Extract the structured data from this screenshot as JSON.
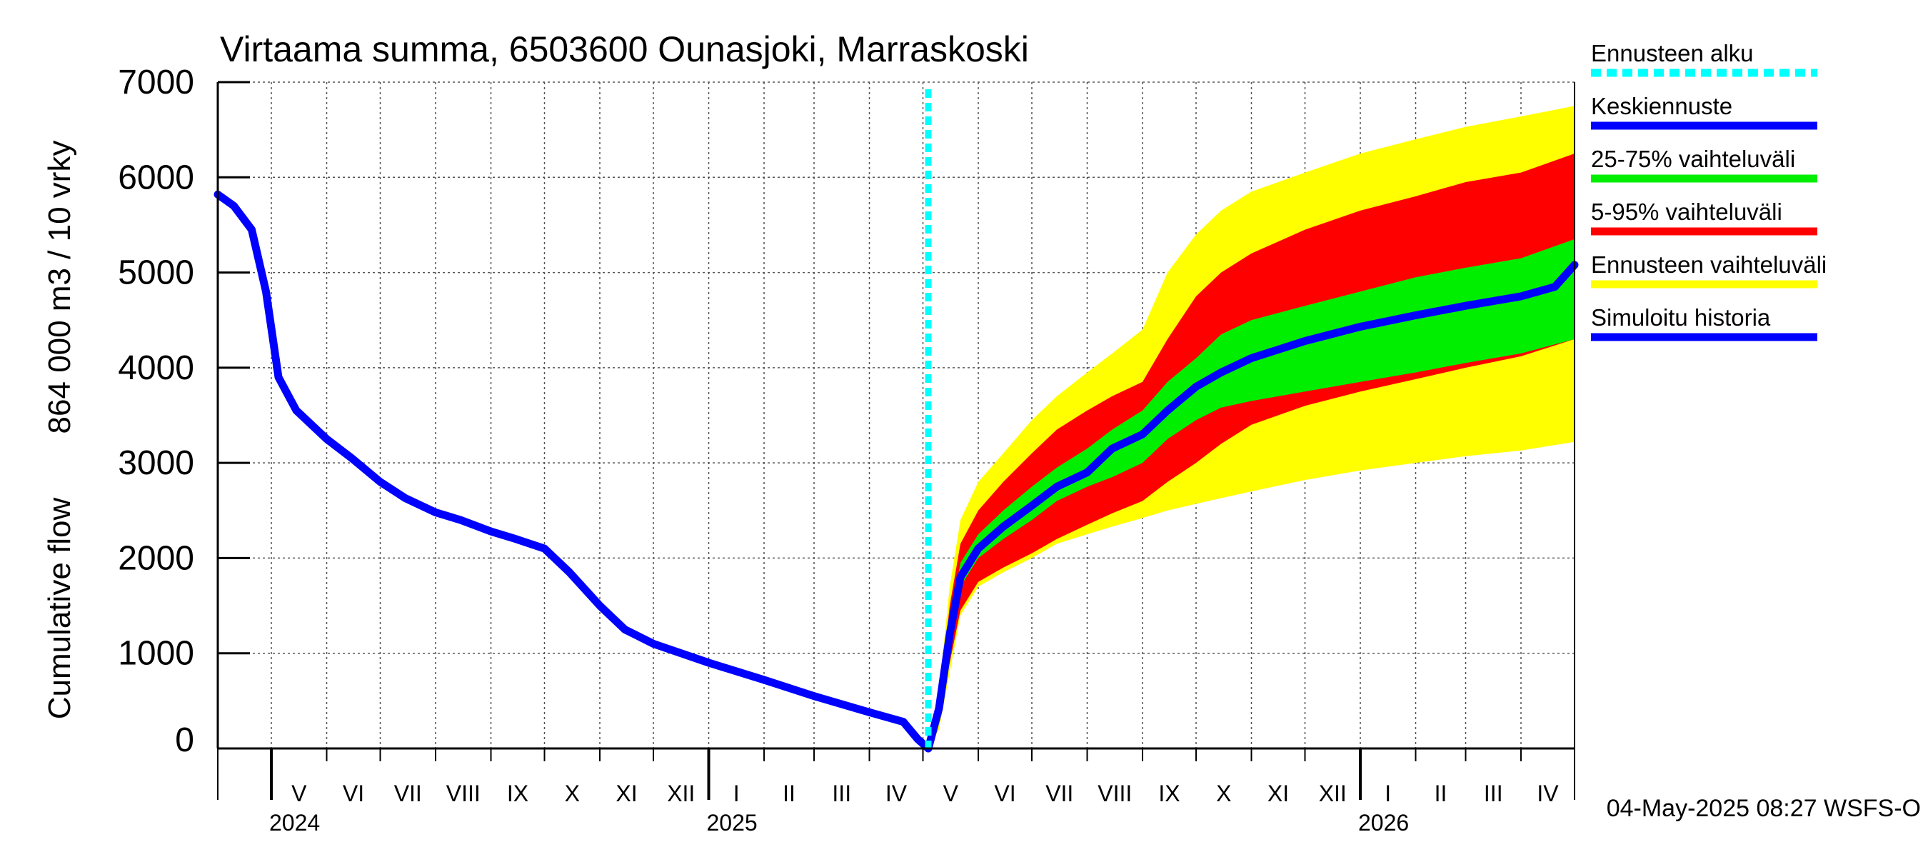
{
  "chart_data": {
    "type": "area",
    "title": "Virtaama summa, 6503600 Ounasjoki, Marraskoski",
    "ylabel_primary": "Cumulative flow",
    "ylabel_secondary": "864 000 m3 / 10 vrky",
    "ylim": [
      0,
      7000
    ],
    "y_ticks": [
      "0",
      "1000",
      "2000",
      "3000",
      "4000",
      "5000",
      "6000",
      "7000"
    ],
    "y_tick_values": [
      0,
      1000,
      2000,
      3000,
      4000,
      5000,
      6000,
      7000
    ],
    "xlim": [
      "2024-04-01",
      "2026-05-01"
    ],
    "grid": true,
    "legend_placement": "right",
    "months": [
      {
        "label": "V",
        "start": "2024-05-01",
        "end": "2024-06-01"
      },
      {
        "label": "VI",
        "start": "2024-06-01",
        "end": "2024-07-01"
      },
      {
        "label": "VII",
        "start": "2024-07-01",
        "end": "2024-08-01"
      },
      {
        "label": "VIII",
        "start": "2024-08-01",
        "end": "2024-09-01"
      },
      {
        "label": "IX",
        "start": "2024-09-01",
        "end": "2024-10-01"
      },
      {
        "label": "X",
        "start": "2024-10-01",
        "end": "2024-11-01"
      },
      {
        "label": "XI",
        "start": "2024-11-01",
        "end": "2024-12-01"
      },
      {
        "label": "XII",
        "start": "2024-12-01",
        "end": "2025-01-01"
      },
      {
        "label": "I",
        "start": "2025-01-01",
        "end": "2025-02-01"
      },
      {
        "label": "II",
        "start": "2025-02-01",
        "end": "2025-03-01"
      },
      {
        "label": "III",
        "start": "2025-03-01",
        "end": "2025-04-01"
      },
      {
        "label": "IV",
        "start": "2025-04-01",
        "end": "2025-05-01"
      },
      {
        "label": "V",
        "start": "2025-05-01",
        "end": "2025-06-01"
      },
      {
        "label": "VI",
        "start": "2025-06-01",
        "end": "2025-07-01"
      },
      {
        "label": "VII",
        "start": "2025-07-01",
        "end": "2025-08-01"
      },
      {
        "label": "VIII",
        "start": "2025-08-01",
        "end": "2025-09-01"
      },
      {
        "label": "IX",
        "start": "2025-09-01",
        "end": "2025-10-01"
      },
      {
        "label": "X",
        "start": "2025-10-01",
        "end": "2025-11-01"
      },
      {
        "label": "XI",
        "start": "2025-11-01",
        "end": "2025-12-01"
      },
      {
        "label": "XII",
        "start": "2025-12-01",
        "end": "2026-01-01"
      },
      {
        "label": "I",
        "start": "2026-01-01",
        "end": "2026-02-01"
      },
      {
        "label": "II",
        "start": "2026-02-01",
        "end": "2026-03-01"
      },
      {
        "label": "III",
        "start": "2026-03-01",
        "end": "2026-04-01"
      },
      {
        "label": "IV",
        "start": "2026-04-01",
        "end": "2026-05-01"
      }
    ],
    "years": [
      {
        "label": "2024",
        "start": "2024-05-01"
      },
      {
        "label": "2025",
        "start": "2025-01-01"
      },
      {
        "label": "2026",
        "start": "2026-01-01"
      }
    ],
    "forecast_start": "2025-05-04",
    "series": [
      {
        "name": "Ennusteen vaihteluväli",
        "color": "#ffff00",
        "kind": "band",
        "x": [
          "2025-05-04",
          "2025-05-10",
          "2025-05-16",
          "2025-05-22",
          "2025-06-01",
          "2025-06-15",
          "2025-07-01",
          "2025-07-15",
          "2025-08-01",
          "2025-08-15",
          "2025-09-01",
          "2025-09-15",
          "2025-10-01",
          "2025-10-15",
          "2025-11-01",
          "2025-12-01",
          "2026-01-01",
          "2026-02-01",
          "2026-03-01",
          "2026-04-01",
          "2026-05-01"
        ],
        "low": [
          0,
          200,
          800,
          1400,
          1700,
          1850,
          2000,
          2150,
          2250,
          2330,
          2420,
          2500,
          2570,
          2630,
          2700,
          2820,
          2920,
          3000,
          3070,
          3130,
          3220
        ],
        "high": [
          0,
          600,
          1700,
          2400,
          2800,
          3100,
          3450,
          3700,
          3950,
          4150,
          4400,
          5000,
          5400,
          5650,
          5850,
          6050,
          6250,
          6400,
          6530,
          6640,
          6750
        ]
      },
      {
        "name": "5-95% vaihteluväli",
        "color": "#ff0000",
        "kind": "band",
        "x": [
          "2025-05-04",
          "2025-05-10",
          "2025-05-16",
          "2025-05-22",
          "2025-06-01",
          "2025-06-15",
          "2025-07-01",
          "2025-07-15",
          "2025-08-01",
          "2025-08-15",
          "2025-09-01",
          "2025-09-15",
          "2025-10-01",
          "2025-10-15",
          "2025-11-01",
          "2025-12-01",
          "2026-01-01",
          "2026-02-01",
          "2026-03-01",
          "2026-04-01",
          "2026-05-01"
        ],
        "low": [
          0,
          300,
          900,
          1450,
          1750,
          1900,
          2050,
          2200,
          2350,
          2470,
          2600,
          2800,
          3000,
          3200,
          3400,
          3600,
          3750,
          3880,
          4000,
          4120,
          4300
        ],
        "high": [
          0,
          500,
          1500,
          2150,
          2500,
          2800,
          3100,
          3350,
          3550,
          3700,
          3850,
          4300,
          4750,
          5000,
          5200,
          5450,
          5650,
          5800,
          5950,
          6050,
          6250
        ]
      },
      {
        "name": "25-75% vaihteluväli",
        "color": "#00ee00",
        "kind": "band",
        "x": [
          "2025-05-04",
          "2025-05-10",
          "2025-05-16",
          "2025-05-22",
          "2025-06-01",
          "2025-06-15",
          "2025-07-01",
          "2025-07-15",
          "2025-08-01",
          "2025-08-15",
          "2025-09-01",
          "2025-09-15",
          "2025-10-01",
          "2025-10-15",
          "2025-11-01",
          "2025-12-01",
          "2026-01-01",
          "2026-02-01",
          "2026-03-01",
          "2026-04-01",
          "2026-05-01"
        ],
        "low": [
          0,
          380,
          1100,
          1700,
          2000,
          2200,
          2400,
          2600,
          2750,
          2850,
          3000,
          3250,
          3450,
          3580,
          3650,
          3750,
          3850,
          3950,
          4050,
          4150,
          4300
        ],
        "high": [
          0,
          440,
          1300,
          1950,
          2250,
          2500,
          2750,
          2950,
          3150,
          3350,
          3550,
          3850,
          4100,
          4350,
          4500,
          4650,
          4800,
          4950,
          5050,
          5150,
          5350
        ]
      },
      {
        "name": "Keskiennuste",
        "color": "#0000ff",
        "kind": "line",
        "x": [
          "2025-05-04",
          "2025-05-10",
          "2025-05-16",
          "2025-05-22",
          "2025-06-01",
          "2025-06-15",
          "2025-07-01",
          "2025-07-15",
          "2025-08-01",
          "2025-08-15",
          "2025-09-01",
          "2025-09-15",
          "2025-10-01",
          "2025-10-15",
          "2025-11-01",
          "2025-12-01",
          "2026-01-01",
          "2026-02-01",
          "2026-03-01",
          "2026-04-01",
          "2026-04-20",
          "2026-05-01"
        ],
        "y": [
          0,
          420,
          1200,
          1800,
          2100,
          2330,
          2550,
          2750,
          2900,
          3150,
          3300,
          3550,
          3800,
          3950,
          4100,
          4280,
          4430,
          4550,
          4650,
          4750,
          4850,
          5080
        ]
      },
      {
        "name": "Simuloitu historia",
        "color": "#0000ff",
        "kind": "line",
        "x": [
          "2024-04-01",
          "2024-04-10",
          "2024-04-20",
          "2024-04-28",
          "2024-05-05",
          "2024-05-15",
          "2024-06-01",
          "2024-06-15",
          "2024-07-01",
          "2024-07-15",
          "2024-08-01",
          "2024-08-15",
          "2024-09-01",
          "2024-09-15",
          "2024-10-01",
          "2024-10-15",
          "2024-11-01",
          "2024-11-15",
          "2024-12-01",
          "2025-01-01",
          "2025-02-01",
          "2025-03-01",
          "2025-04-01",
          "2025-04-20",
          "2025-04-28",
          "2025-05-04"
        ],
        "y": [
          5820,
          5700,
          5450,
          4800,
          3900,
          3550,
          3250,
          3050,
          2800,
          2630,
          2480,
          2400,
          2280,
          2200,
          2100,
          1850,
          1500,
          1250,
          1100,
          900,
          720,
          550,
          380,
          280,
          100,
          0
        ]
      }
    ],
    "legend": [
      {
        "label": "Ennusteen alku",
        "color": "#00ffff",
        "style": "dashed"
      },
      {
        "label": "Keskiennuste",
        "color": "#0000ff",
        "style": "solid"
      },
      {
        "label": "25-75% vaihteluväli",
        "color": "#00ee00",
        "style": "solid"
      },
      {
        "label": "5-95% vaihteluväli",
        "color": "#ff0000",
        "style": "solid"
      },
      {
        "label": "Ennusteen vaihteluväli",
        "color": "#ffff00",
        "style": "solid"
      },
      {
        "label": "Simuloitu historia",
        "color": "#0000ff",
        "style": "solid"
      }
    ],
    "footer": "04-May-2025 08:27 WSFS-O"
  }
}
